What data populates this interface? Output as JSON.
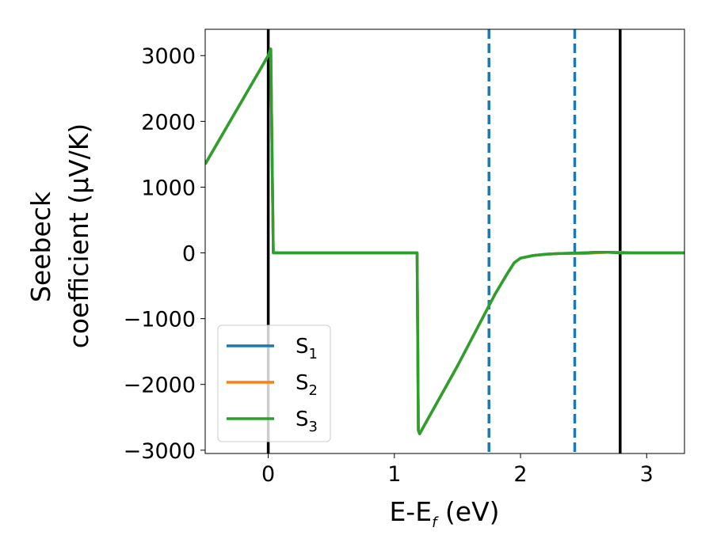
{
  "chart_data": {
    "type": "line",
    "xlabel": {
      "main": "E-E",
      "sub": "f",
      "rest": " (eV)"
    },
    "ylabel": {
      "line1": "Seebeck",
      "line2": "coefficient  (μV/K)"
    },
    "xlim": [
      -0.5,
      3.3
    ],
    "ylim": [
      -3050,
      3400
    ],
    "xticks": [
      0,
      1,
      2,
      3
    ],
    "xtick_labels": [
      "0",
      "1",
      "2",
      "3"
    ],
    "yticks": [
      -3000,
      -2000,
      -1000,
      0,
      1000,
      2000,
      3000
    ],
    "ytick_labels": [
      "−3000",
      "−2000",
      "−1000",
      "0",
      "1000",
      "2000",
      "3000"
    ],
    "vlines_solid": [
      0.0,
      2.79
    ],
    "vlines_dashed": [
      1.75,
      2.43
    ],
    "vline_colors": {
      "solid": "#000000",
      "dashed": "#1f77b4"
    },
    "legend": {
      "position": "lower-left"
    },
    "series": [
      {
        "name": "S",
        "sub": "1",
        "color": "#1f77b4",
        "x": [
          -0.5,
          0.0,
          0.02,
          0.03,
          0.04,
          1.18,
          1.19,
          1.2,
          1.5,
          1.8,
          1.9,
          1.95,
          2.0,
          2.1,
          2.2,
          2.3,
          2.5,
          2.6,
          2.7,
          2.8,
          2.9,
          3.0,
          3.3
        ],
        "y": [
          1350,
          3000,
          3100,
          1500,
          0,
          0,
          -2700,
          -2750,
          -1720,
          -620,
          -300,
          -150,
          -80,
          -40,
          -20,
          -10,
          0,
          10,
          10,
          0,
          0,
          0,
          0
        ]
      },
      {
        "name": "S",
        "sub": "2",
        "color": "#ff7f0e",
        "x": [
          -0.5,
          0.0,
          0.02,
          0.03,
          0.04,
          1.18,
          1.19,
          1.2,
          1.5,
          1.8,
          1.9,
          1.95,
          2.0,
          2.1,
          2.2,
          2.3,
          2.5,
          2.6,
          2.7,
          2.8,
          2.9,
          3.0,
          3.3
        ],
        "y": [
          1350,
          3000,
          3100,
          1500,
          0,
          0,
          -2700,
          -2750,
          -1720,
          -620,
          -300,
          -150,
          -80,
          -40,
          -20,
          -10,
          -10,
          0,
          10,
          10,
          0,
          0,
          0
        ]
      },
      {
        "name": "S",
        "sub": "3",
        "color": "#2ca02c",
        "x": [
          -0.5,
          0.0,
          0.02,
          0.03,
          0.04,
          1.18,
          1.19,
          1.2,
          1.5,
          1.8,
          1.9,
          1.95,
          2.0,
          2.1,
          2.2,
          2.3,
          2.5,
          2.6,
          2.7,
          2.8,
          2.9,
          3.0,
          3.3
        ],
        "y": [
          1350,
          3000,
          3100,
          1500,
          0,
          0,
          -2700,
          -2750,
          -1720,
          -620,
          -300,
          -150,
          -80,
          -40,
          -20,
          -10,
          0,
          10,
          10,
          0,
          0,
          0,
          0
        ]
      }
    ]
  }
}
